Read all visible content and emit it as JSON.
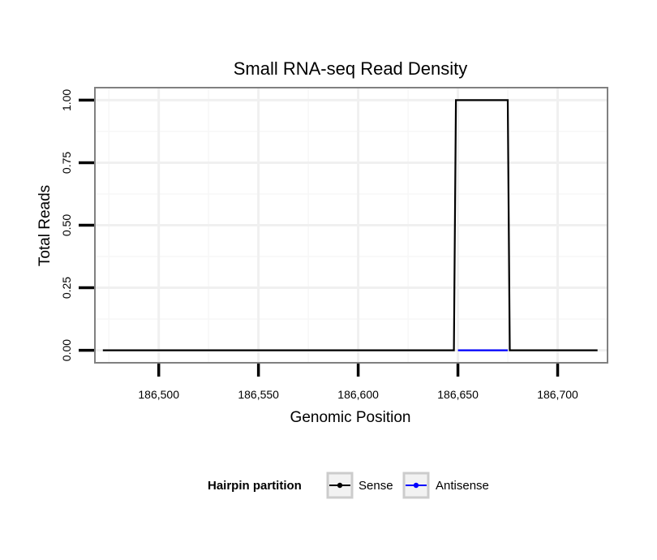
{
  "chart_data": {
    "type": "line",
    "title": "Small RNA-seq Read Density",
    "xlabel": "Genomic Position",
    "ylabel": "Total Reads",
    "xlim": [
      186468,
      186725
    ],
    "ylim": [
      -0.05,
      1.05
    ],
    "x_ticks": [
      186500,
      186550,
      186600,
      186650,
      186700
    ],
    "x_tick_labels": [
      "186,500",
      "186,550",
      "186,600",
      "186,650",
      "186,700"
    ],
    "y_ticks": [
      0,
      0.25,
      0.5,
      0.75,
      1.0
    ],
    "y_tick_labels": [
      "0.00",
      "0.25",
      "0.50",
      "0.75",
      "1.00"
    ],
    "grid": true,
    "legend": {
      "title": "Hairpin partition",
      "placement": "bottom",
      "entries": [
        {
          "label": "Sense",
          "color": "#000000"
        },
        {
          "label": "Antisense",
          "color": "#0000ff"
        }
      ]
    },
    "series": [
      {
        "name": "Sense",
        "color": "#000000",
        "x": [
          186472,
          186648,
          186649,
          186675,
          186676,
          186720
        ],
        "y": [
          0,
          0,
          1,
          1,
          0,
          0
        ]
      },
      {
        "name": "Antisense",
        "color": "#0000ff",
        "x": [
          186650,
          186675
        ],
        "y": [
          0,
          0
        ]
      }
    ]
  }
}
